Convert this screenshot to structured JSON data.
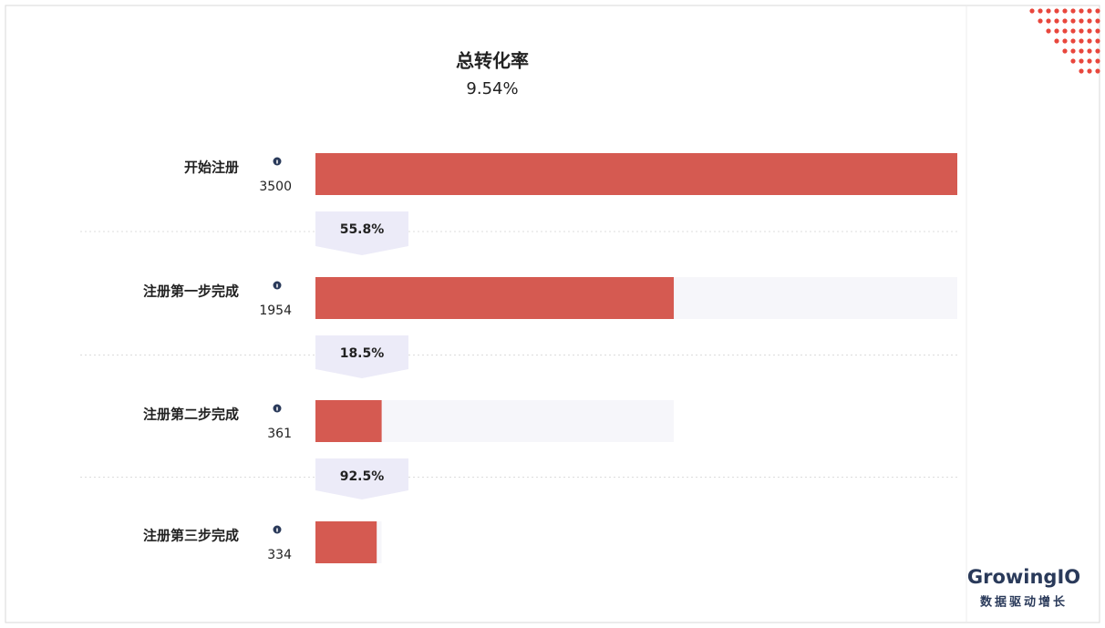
{
  "chart_data": {
    "type": "funnel",
    "title": "总转化率",
    "subtitle": "9.54%",
    "categories": [
      "开始注册",
      "注册第一步完成",
      "注册第二步完成",
      "注册第三步完成"
    ],
    "values": [
      3500,
      1954,
      361,
      334
    ],
    "conversion_rates": [
      55.8,
      18.5,
      92.5
    ],
    "conversion_rate_labels": [
      "55.8%",
      "18.5%",
      "92.5%"
    ],
    "xlim": [
      0,
      3500
    ],
    "color": "#d55a51",
    "track_color": "#f6f6fa",
    "badge_color": "#ecebf8"
  },
  "brand": {
    "name": "GrowingIO",
    "slogan": "数据驱动增长"
  }
}
